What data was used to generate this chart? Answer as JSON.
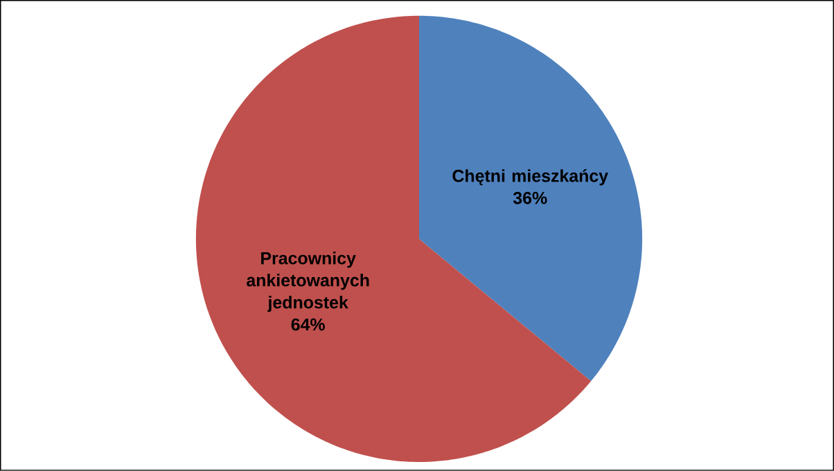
{
  "chart_data": {
    "type": "pie",
    "categories": [
      "Chętni mieszkańcy",
      "Pracownicy ankietowanych jednostek"
    ],
    "values": [
      36,
      64
    ],
    "colors": [
      "#4f81bd",
      "#c0504d"
    ],
    "value_labels": [
      "36%",
      "64%"
    ]
  }
}
